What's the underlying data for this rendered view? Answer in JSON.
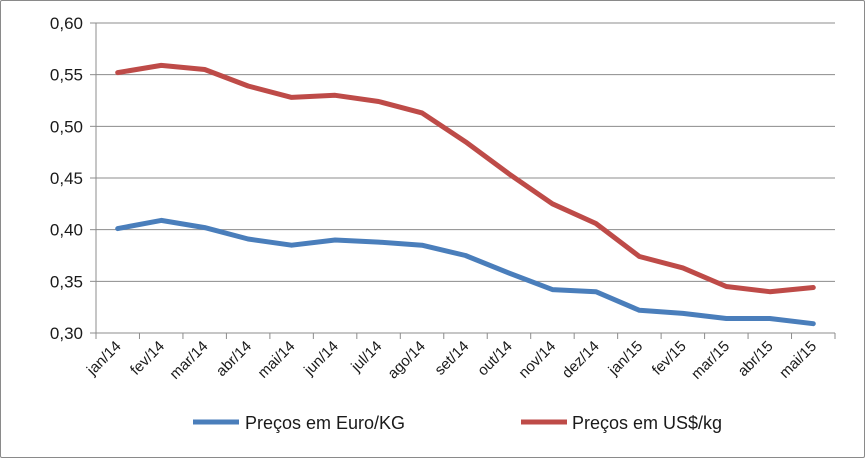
{
  "chart_data": {
    "type": "line",
    "title": "",
    "xlabel": "",
    "ylabel": "",
    "categories": [
      "jan/14",
      "fev/14",
      "mar/14",
      "abr/14",
      "mai/14",
      "jun/14",
      "jul/14",
      "ago/14",
      "set/14",
      "out/14",
      "nov/14",
      "dez/14",
      "jan/15",
      "fev/15",
      "mar/15",
      "abr/15",
      "mai/15"
    ],
    "ylim": [
      0.3,
      0.6
    ],
    "yticks": [
      "0,30",
      "0,35",
      "0,40",
      "0,45",
      "0,50",
      "0,55",
      "0,60"
    ],
    "grid": true,
    "legend_position": "bottom",
    "series": [
      {
        "name": "Preços em Euro/KG",
        "color": "#4a7ebb",
        "values": [
          0.401,
          0.409,
          0.402,
          0.391,
          0.385,
          0.39,
          0.388,
          0.385,
          0.375,
          0.358,
          0.342,
          0.34,
          0.322,
          0.319,
          0.314,
          0.314,
          0.309
        ]
      },
      {
        "name": "Preços em US$/kg",
        "color": "#be4b48",
        "values": [
          0.552,
          0.559,
          0.555,
          0.539,
          0.528,
          0.53,
          0.524,
          0.513,
          0.485,
          0.454,
          0.425,
          0.406,
          0.374,
          0.363,
          0.345,
          0.34,
          0.344
        ]
      }
    ]
  }
}
